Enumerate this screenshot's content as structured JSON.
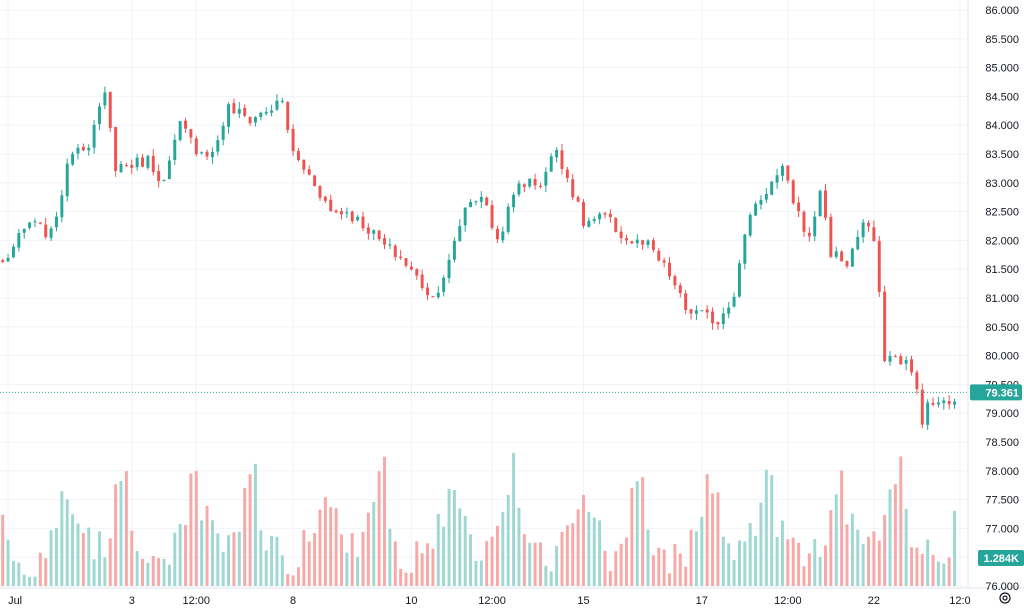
{
  "chart_data": {
    "type": "candlestick",
    "symbol": "",
    "colors": {
      "up": "#26a69a",
      "down": "#ef5350",
      "up_volume": "#9fd8d2",
      "down_volume": "#f7a9a7",
      "grid": "#f0f3fa",
      "axis_text": "#131722",
      "last_price_line": "#26a69a"
    },
    "y_axis": {
      "range": [
        76.0,
        86.0
      ],
      "ticks": [
        "86.000",
        "85.500",
        "85.000",
        "84.500",
        "84.000",
        "83.500",
        "83.000",
        "82.500",
        "82.000",
        "81.500",
        "81.000",
        "80.500",
        "80.000",
        "79.500",
        "79.000",
        "78.500",
        "78.000",
        "77.500",
        "77.000",
        "76.500",
        "76.000"
      ]
    },
    "x_axis": {
      "ticks": [
        {
          "label": "Jul",
          "index": 1
        },
        {
          "label": "3",
          "index": 24
        },
        {
          "label": "12:00",
          "index": 36
        },
        {
          "label": "8",
          "index": 54
        },
        {
          "label": "10",
          "index": 76
        },
        {
          "label": "12:00",
          "index": 91
        },
        {
          "label": "15",
          "index": 108
        },
        {
          "label": "17",
          "index": 130
        },
        {
          "label": "12:00",
          "index": 146
        },
        {
          "label": "22",
          "index": 162
        },
        {
          "label": "12:0",
          "index": 178
        }
      ]
    },
    "last_price": {
      "value": 79.361,
      "label": "79.361"
    },
    "volume_last": {
      "label": "1.284K"
    },
    "close_path": [
      [
        0,
        81.6
      ],
      [
        5,
        82.3
      ],
      [
        9,
        82.1
      ],
      [
        13,
        83.6
      ],
      [
        16,
        83.7
      ],
      [
        19,
        84.5
      ],
      [
        21,
        83.3
      ],
      [
        23,
        83.3
      ],
      [
        27,
        83.4
      ],
      [
        30,
        83.0
      ],
      [
        33,
        84.0
      ],
      [
        36,
        83.6
      ],
      [
        39,
        83.5
      ],
      [
        42,
        84.3
      ],
      [
        46,
        84.1
      ],
      [
        52,
        84.4
      ],
      [
        54,
        83.5
      ],
      [
        58,
        83.0
      ],
      [
        61,
        82.5
      ],
      [
        64,
        82.5
      ],
      [
        68,
        82.2
      ],
      [
        71,
        81.9
      ],
      [
        74,
        81.7
      ],
      [
        80,
        81.0
      ],
      [
        83,
        81.6
      ],
      [
        86,
        82.6
      ],
      [
        89,
        82.8
      ],
      [
        92,
        82.0
      ],
      [
        96,
        83.0
      ],
      [
        100,
        83.0
      ],
      [
        103,
        83.6
      ],
      [
        105,
        83.1
      ],
      [
        108,
        82.3
      ],
      [
        112,
        82.4
      ],
      [
        116,
        82.0
      ],
      [
        120,
        81.9
      ],
      [
        124,
        81.4
      ],
      [
        127,
        80.8
      ],
      [
        130,
        80.7
      ],
      [
        133,
        80.6
      ],
      [
        136,
        81.1
      ],
      [
        139,
        82.5
      ],
      [
        143,
        83.0
      ],
      [
        145,
        83.2
      ],
      [
        147,
        82.7
      ],
      [
        150,
        82.0
      ],
      [
        152,
        82.9
      ],
      [
        154,
        81.8
      ],
      [
        157,
        81.6
      ],
      [
        160,
        82.3
      ],
      [
        162,
        82.0
      ],
      [
        164,
        80.0
      ],
      [
        168,
        79.9
      ],
      [
        170,
        79.4
      ],
      [
        171,
        78.9
      ],
      [
        172,
        79.1
      ],
      [
        174,
        79.2
      ],
      [
        176,
        79.1
      ],
      [
        177,
        79.36
      ]
    ],
    "volume_profile": [
      0.3,
      0.22,
      0.12,
      0.08,
      0.05,
      0.04,
      0.06,
      0.1,
      0.16,
      0.26,
      0.38,
      0.55,
      0.62,
      0.45,
      0.3,
      0.2,
      0.14,
      0.1,
      0.12,
      0.2,
      0.34,
      0.5,
      0.62,
      0.72
    ]
  }
}
